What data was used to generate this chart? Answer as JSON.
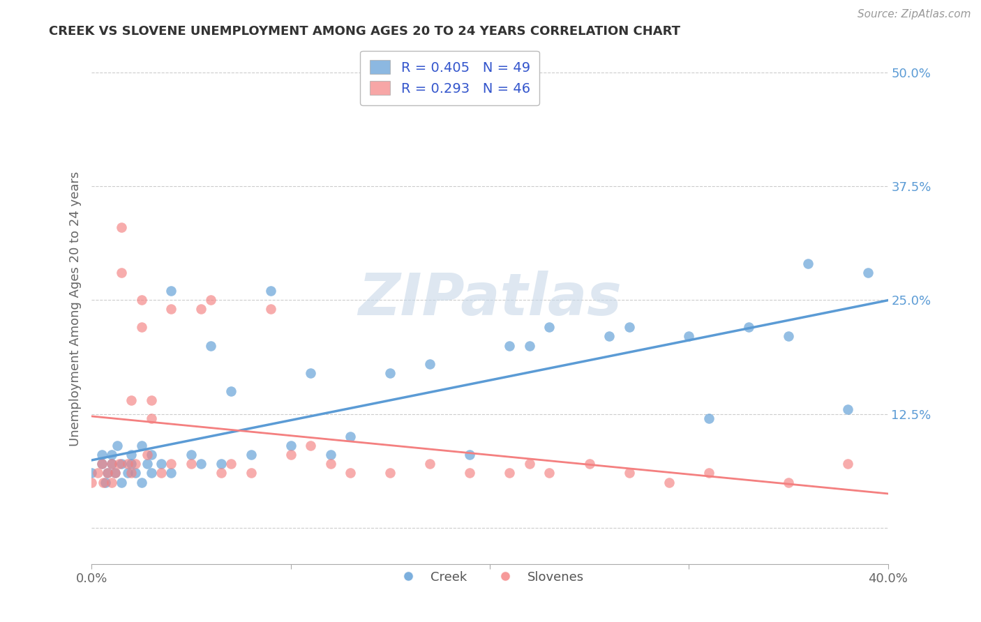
{
  "title": "CREEK VS SLOVENE UNEMPLOYMENT AMONG AGES 20 TO 24 YEARS CORRELATION CHART",
  "source": "Source: ZipAtlas.com",
  "ylabel": "Unemployment Among Ages 20 to 24 years",
  "xlim": [
    0.0,
    0.4
  ],
  "ylim": [
    -0.04,
    0.52
  ],
  "x_ticks": [
    0.0,
    0.1,
    0.2,
    0.3,
    0.4
  ],
  "x_tick_labels": [
    "0.0%",
    "",
    "",
    "",
    "40.0%"
  ],
  "y_ticks": [
    0.0,
    0.125,
    0.25,
    0.375,
    0.5
  ],
  "y_tick_labels": [
    "",
    "12.5%",
    "25.0%",
    "37.5%",
    "50.0%"
  ],
  "creek_color": "#5b9bd5",
  "slovene_color": "#f48080",
  "creek_R": 0.405,
  "creek_N": 49,
  "slovene_R": 0.293,
  "slovene_N": 46,
  "watermark": "ZIPatlas",
  "creek_x": [
    0.0,
    0.005,
    0.005,
    0.007,
    0.008,
    0.01,
    0.01,
    0.012,
    0.013,
    0.015,
    0.015,
    0.018,
    0.02,
    0.02,
    0.022,
    0.025,
    0.025,
    0.028,
    0.03,
    0.03,
    0.035,
    0.04,
    0.04,
    0.05,
    0.055,
    0.06,
    0.065,
    0.07,
    0.08,
    0.09,
    0.1,
    0.11,
    0.12,
    0.13,
    0.15,
    0.17,
    0.19,
    0.21,
    0.22,
    0.23,
    0.26,
    0.27,
    0.3,
    0.31,
    0.33,
    0.35,
    0.36,
    0.38,
    0.39
  ],
  "creek_y": [
    0.06,
    0.07,
    0.08,
    0.05,
    0.06,
    0.07,
    0.08,
    0.06,
    0.09,
    0.05,
    0.07,
    0.06,
    0.08,
    0.07,
    0.06,
    0.05,
    0.09,
    0.07,
    0.08,
    0.06,
    0.07,
    0.06,
    0.26,
    0.08,
    0.07,
    0.2,
    0.07,
    0.15,
    0.08,
    0.26,
    0.09,
    0.17,
    0.08,
    0.1,
    0.17,
    0.18,
    0.08,
    0.2,
    0.2,
    0.22,
    0.21,
    0.22,
    0.21,
    0.12,
    0.22,
    0.21,
    0.29,
    0.13,
    0.28
  ],
  "slovene_x": [
    0.0,
    0.003,
    0.005,
    0.006,
    0.008,
    0.01,
    0.01,
    0.012,
    0.014,
    0.015,
    0.015,
    0.018,
    0.02,
    0.02,
    0.022,
    0.025,
    0.025,
    0.028,
    0.03,
    0.03,
    0.035,
    0.04,
    0.04,
    0.05,
    0.055,
    0.06,
    0.065,
    0.07,
    0.08,
    0.09,
    0.1,
    0.11,
    0.12,
    0.13,
    0.15,
    0.17,
    0.19,
    0.21,
    0.22,
    0.23,
    0.25,
    0.27,
    0.29,
    0.31,
    0.35,
    0.38
  ],
  "slovene_y": [
    0.05,
    0.06,
    0.07,
    0.05,
    0.06,
    0.05,
    0.07,
    0.06,
    0.07,
    0.28,
    0.33,
    0.07,
    0.06,
    0.14,
    0.07,
    0.25,
    0.22,
    0.08,
    0.12,
    0.14,
    0.06,
    0.07,
    0.24,
    0.07,
    0.24,
    0.25,
    0.06,
    0.07,
    0.06,
    0.24,
    0.08,
    0.09,
    0.07,
    0.06,
    0.06,
    0.07,
    0.06,
    0.06,
    0.07,
    0.06,
    0.07,
    0.06,
    0.05,
    0.06,
    0.05,
    0.07
  ]
}
